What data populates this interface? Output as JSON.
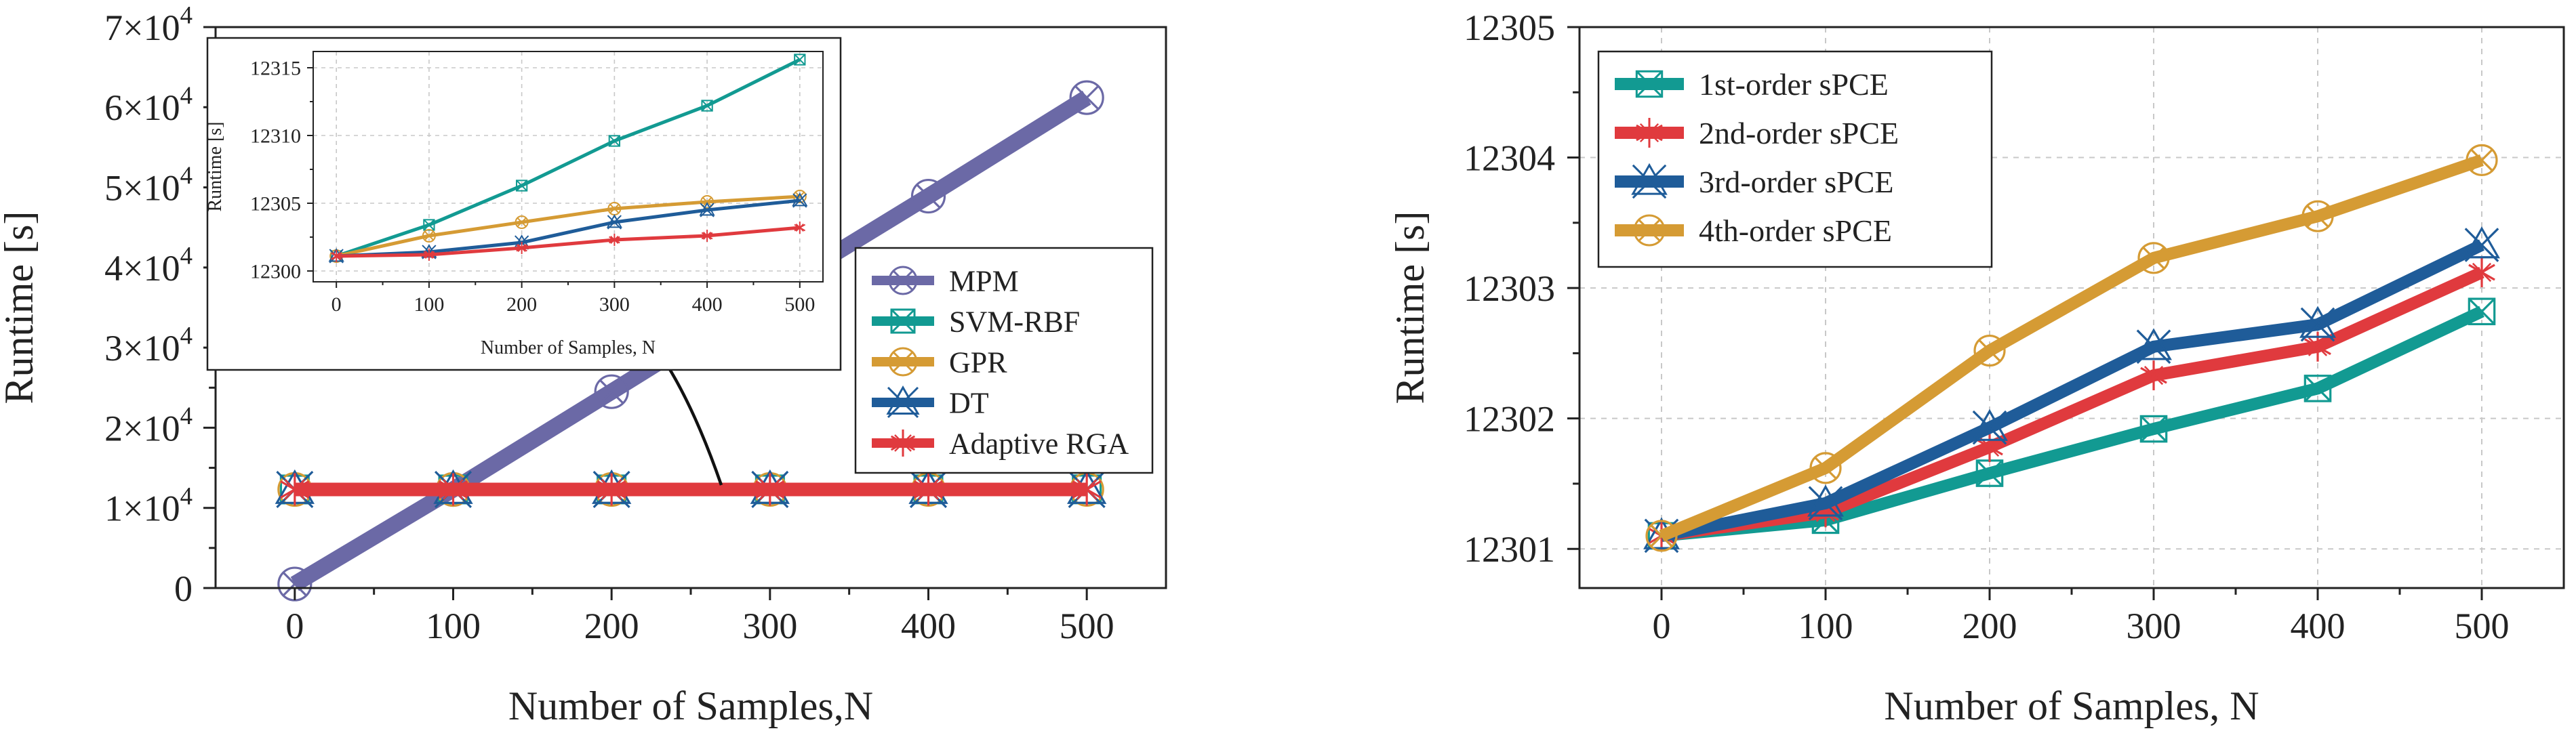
{
  "chart_data": [
    {
      "id": "left",
      "type": "line",
      "xlabel": "Number of Samples,N",
      "ylabel": "Runtime [s]",
      "x": [
        0,
        100,
        200,
        300,
        400,
        500
      ],
      "xticks": [
        "0",
        "100",
        "200",
        "300",
        "400",
        "500"
      ],
      "xlim": [
        -50,
        550
      ],
      "ylim": [
        0,
        70000
      ],
      "yticks": [
        {
          "value": 0,
          "mant": "0",
          "exp": ""
        },
        {
          "value": 10000,
          "mant": "1×10",
          "exp": "4"
        },
        {
          "value": 20000,
          "mant": "2×10",
          "exp": "4"
        },
        {
          "value": 30000,
          "mant": "3×10",
          "exp": "4"
        },
        {
          "value": 40000,
          "mant": "4×10",
          "exp": "4"
        },
        {
          "value": 50000,
          "mant": "5×10",
          "exp": "4"
        },
        {
          "value": 60000,
          "mant": "6×10",
          "exp": "4"
        },
        {
          "value": 70000,
          "mant": "7×10",
          "exp": "4"
        }
      ],
      "grid": false,
      "legend_position": "right",
      "series": [
        {
          "name": "MPM",
          "color": "#6b69a6",
          "marker": "circle-x",
          "values": [
            500,
            12300,
            24500,
            36800,
            48900,
            61200
          ]
        },
        {
          "name": "SVM-RBF",
          "color": "#129a92",
          "marker": "square-x",
          "values": [
            12301.1,
            12303.4,
            12306.3,
            12309.6,
            12312.2,
            12315.6
          ]
        },
        {
          "name": "GPR",
          "color": "#d59b34",
          "marker": "circle-x",
          "values": [
            12301.1,
            12302.6,
            12303.6,
            12304.6,
            12305.1,
            12305.5
          ]
        },
        {
          "name": "DT",
          "color": "#1f5c99",
          "marker": "triangle-x",
          "values": [
            12301.1,
            12301.4,
            12302.1,
            12303.6,
            12304.5,
            12305.2
          ]
        },
        {
          "name": "Adaptive RGA",
          "color": "#e03a3e",
          "marker": "star",
          "values": [
            12301.1,
            12301.2,
            12301.7,
            12302.3,
            12302.6,
            12303.2
          ]
        }
      ]
    },
    {
      "id": "inset",
      "type": "line",
      "xlabel": "Number of Samples, N",
      "ylabel": "Runtime [s]",
      "x": [
        0,
        100,
        200,
        300,
        400,
        500
      ],
      "xticks": [
        "0",
        "100",
        "200",
        "300",
        "400",
        "500"
      ],
      "xlim": [
        -25,
        525
      ],
      "ylim": [
        12299.2,
        12316.2
      ],
      "yticks": [
        {
          "value": 12300,
          "label": "12300"
        },
        {
          "value": 12305,
          "label": "12305"
        },
        {
          "value": 12310,
          "label": "12310"
        },
        {
          "value": 12315,
          "label": "12315"
        }
      ],
      "grid": true,
      "series": [
        {
          "color": "#129a92",
          "values": [
            12301.1,
            12303.4,
            12306.3,
            12309.6,
            12312.2,
            12315.6
          ]
        },
        {
          "color": "#d59b34",
          "values": [
            12301.1,
            12302.6,
            12303.6,
            12304.6,
            12305.1,
            12305.5
          ]
        },
        {
          "color": "#1f5c99",
          "values": [
            12301.1,
            12301.4,
            12302.1,
            12303.6,
            12304.5,
            12305.2
          ]
        },
        {
          "color": "#e03a3e",
          "values": [
            12301.1,
            12301.2,
            12301.7,
            12302.3,
            12302.6,
            12303.2
          ]
        }
      ]
    },
    {
      "id": "right",
      "type": "line",
      "xlabel": "Number of Samples, N",
      "ylabel": "Runtime [s]",
      "x": [
        0,
        100,
        200,
        300,
        400,
        500
      ],
      "xticks": [
        "0",
        "100",
        "200",
        "300",
        "400",
        "500"
      ],
      "xlim": [
        -50,
        550
      ],
      "ylim": [
        12300.7,
        12305
      ],
      "yticks": [
        {
          "value": 12301,
          "label": "12301"
        },
        {
          "value": 12302,
          "label": "12302"
        },
        {
          "value": 12303,
          "label": "12303"
        },
        {
          "value": 12304,
          "label": "12304"
        },
        {
          "value": 12305,
          "label": "12305"
        }
      ],
      "grid": true,
      "legend_position": "top-left",
      "series": [
        {
          "name": "1st-order sPCE",
          "color": "#129a92",
          "marker": "square-x",
          "values": [
            12301.1,
            12301.22,
            12301.58,
            12301.92,
            12302.23,
            12302.82
          ]
        },
        {
          "name": "2nd-order sPCE",
          "color": "#e03a3e",
          "marker": "star",
          "values": [
            12301.1,
            12301.28,
            12301.78,
            12302.33,
            12302.55,
            12303.12
          ]
        },
        {
          "name": "3rd-order sPCE",
          "color": "#1f5c99",
          "marker": "triangle-x",
          "values": [
            12301.1,
            12301.35,
            12301.93,
            12302.55,
            12302.72,
            12303.33
          ]
        },
        {
          "name": "4th-order sPCE",
          "color": "#d59b34",
          "marker": "circle-x",
          "values": [
            12301.1,
            12301.62,
            12302.52,
            12303.23,
            12303.55,
            12303.98
          ]
        }
      ]
    }
  ]
}
